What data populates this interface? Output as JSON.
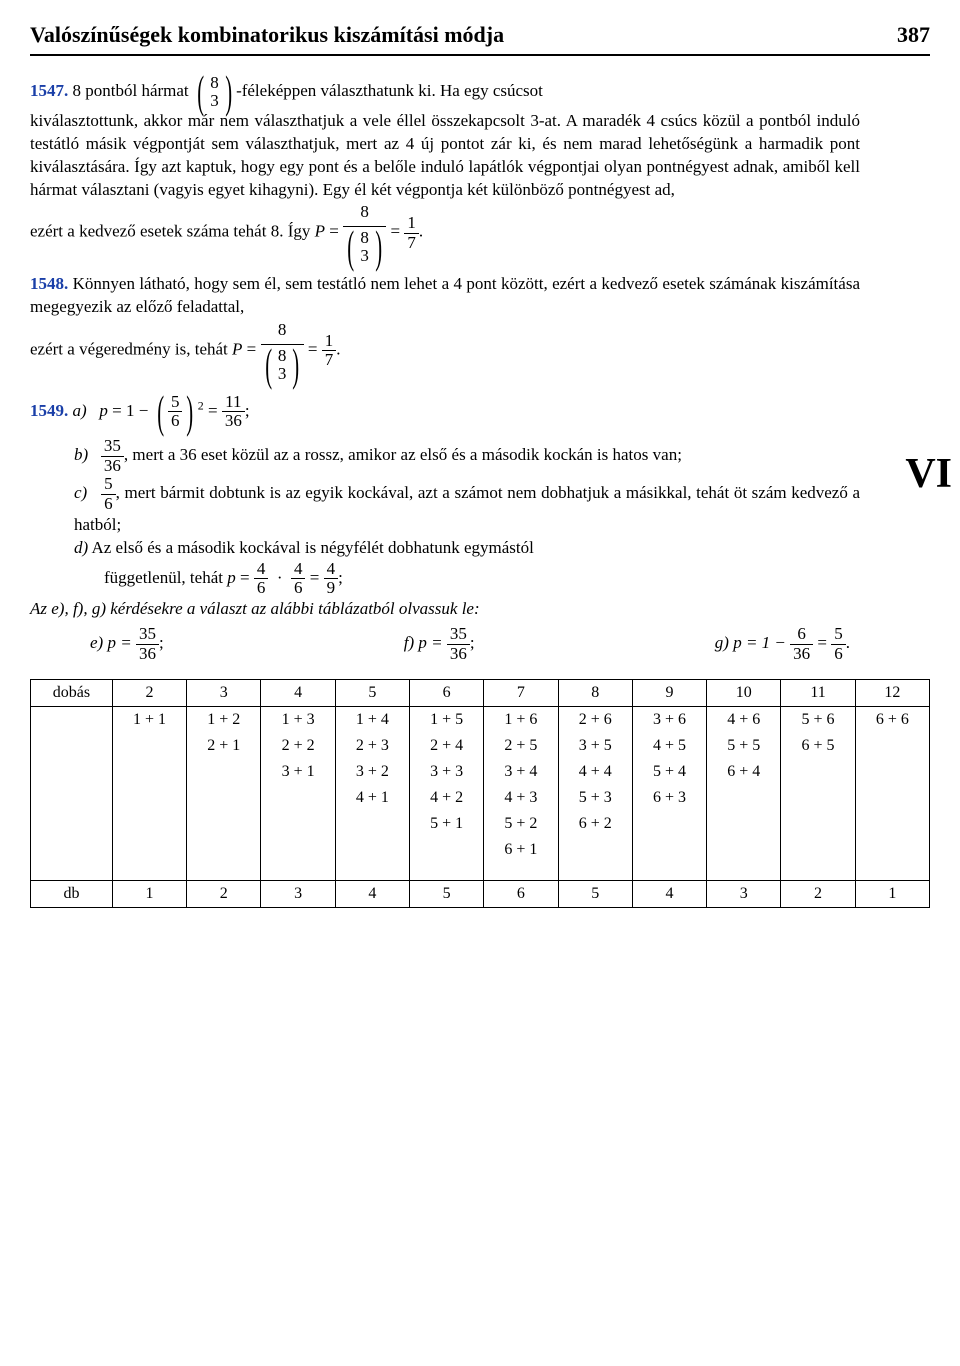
{
  "header": {
    "title": "Valószínűségek kombinatorikus kiszámítási módja",
    "page_number": "387"
  },
  "section_marker": "VI",
  "p1547": {
    "num": "1547.",
    "lead": " 8 pontból hármat ",
    "binom_top": "8",
    "binom_bot": "3",
    "after_binom": "-féleképpen választhatunk ki. Ha egy csúcsot",
    "line2": "kiválasztottunk, akkor már nem választhatjuk a vele éllel összekapcsolt 3-at. A maradék 4 csúcs közül a pontból induló testátló  másik végpontját sem választhatjuk, mert az 4 új pontot zár ki, és nem marad lehetőségünk a harmadik pont kiválasztására. Így azt kaptuk, hogy egy pont és a belőle induló lapátlók végpontjai olyan pontnégyest adnak, amiből kell hármat választani (vagyis egyet kihagyni). Egy él két végpontja két különböző pontnégyest ad,",
    "line3_a": "ezért a kedvező esetek száma tehát 8. Így ",
    "P": "P",
    "eq": " = ",
    "frac_top": "8",
    "result": "1",
    "result_den": "7",
    "dot": "."
  },
  "p1548": {
    "num": "1548.",
    "text1": " Könnyen látható, hogy sem él, sem testátló nem lehet a 4 pont között, ezért a kedvező esetek számának kiszámítása megegyezik az előző feladattal,",
    "text2": "ezért a végeredmény is, tehát ",
    "P": "P",
    "eq": " = ",
    "frac_top": "8",
    "binom_top": "8",
    "binom_bot": "3",
    "result": "1",
    "result_den": "7",
    "dot": "."
  },
  "p1549": {
    "num": "1549.",
    "a_label": "a)",
    "a_eq_lhs": "p",
    "a_eq": " = 1 − ",
    "a_frac_top": "5",
    "a_frac_bot": "6",
    "a_exp": "2",
    "a_eq2": " = ",
    "a_res_top": "11",
    "a_res_bot": "36",
    "semicolon": ";",
    "b_label": "b)",
    "b_frac_top": "35",
    "b_frac_bot": "36",
    "b_text": ", mert a 36 eset közül az a rossz, amikor az első és a második kockán is hatos van;",
    "c_label": "c)",
    "c_frac_top": "5",
    "c_frac_bot": "6",
    "c_text": ", mert bármit dobtunk is az egyik kockával, azt a számot nem dobhatjuk a másikkal, tehát öt szám kedvező a hatból;",
    "d_label": "d)",
    "d_text1": " Az első és a második kockával is négyfélét dobhatunk egymástól",
    "d_text2": "függetlenül, tehát ",
    "d_p": "p",
    "d_eq": " = ",
    "d_f1_top": "4",
    "d_f1_bot": "6",
    "d_f2_top": "4",
    "d_f2_bot": "6",
    "d_f3_top": "4",
    "d_f3_bot": "9",
    "efg_intro": "Az e), f), g) kérdésekre a választ az alábbi táblázatból olvassuk le:",
    "e_label": "e) p = ",
    "e_top": "35",
    "e_bot": "36",
    "f_label": "f) p = ",
    "f_top": "35",
    "f_bot": "36",
    "g_label": "g)",
    "g_p": " p = 1 − ",
    "g_top": "6",
    "g_bot": "36",
    "g_eq2": " = ",
    "g_r_top": "5",
    "g_r_bot": "6"
  },
  "table": {
    "row1_label": "dobás",
    "row1": [
      "2",
      "3",
      "4",
      "5",
      "6",
      "7",
      "8",
      "9",
      "10",
      "11",
      "12"
    ],
    "combos": [
      [
        "1 + 1"
      ],
      [
        "1 + 2",
        "2 + 1"
      ],
      [
        "1 + 3",
        "2 + 2",
        "3 + 1"
      ],
      [
        "1 + 4",
        "2 + 3",
        "3 + 2",
        "4 + 1"
      ],
      [
        "1 + 5",
        "2 + 4",
        "3 + 3",
        "4 + 2",
        "5 + 1"
      ],
      [
        "1 + 6",
        "2 + 5",
        "3 + 4",
        "4 + 3",
        "5 + 2",
        "6 + 1"
      ],
      [
        "2 + 6",
        "3 + 5",
        "4 + 4",
        "5 + 3",
        "6 + 2"
      ],
      [
        "3 + 6",
        "4 + 5",
        "5 + 4",
        "6 + 3"
      ],
      [
        "4 + 6",
        "5 + 5",
        "6 + 4"
      ],
      [
        "5 + 6",
        "6 + 5"
      ],
      [
        "6 + 6"
      ]
    ],
    "row3_label": "db",
    "row3": [
      "1",
      "2",
      "3",
      "4",
      "5",
      "6",
      "5",
      "4",
      "3",
      "2",
      "1"
    ]
  }
}
